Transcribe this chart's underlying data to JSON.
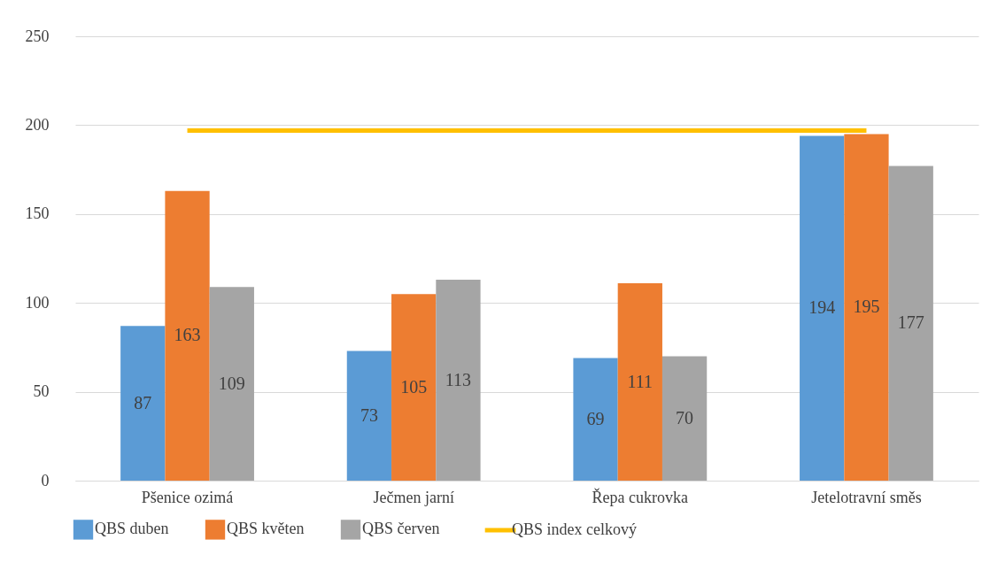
{
  "chart_data": {
    "type": "bar",
    "categories": [
      "Pšenice ozimá",
      "Ječmen jarní",
      "Řepa cukrovka",
      "Jetelotravní směs"
    ],
    "series": [
      {
        "name": "QBS duben",
        "color": "#5b9bd5",
        "values": [
          87,
          73,
          69,
          194
        ],
        "value_labels": [
          "87",
          "73",
          "69",
          "194"
        ]
      },
      {
        "name": "QBS květen",
        "color": "#ed7d31",
        "values": [
          163,
          105,
          111,
          195
        ],
        "value_labels": [
          "163",
          "105",
          "111",
          "195"
        ]
      },
      {
        "name": "QBS červen",
        "color": "#a5a5a5",
        "values": [
          109,
          113,
          70,
          177
        ],
        "value_labels": [
          "109",
          "113",
          "70",
          "177"
        ]
      },
      {
        "name": "QBS index celkový",
        "type": "line",
        "color": "#ffc000",
        "values": [
          197,
          197,
          197,
          197
        ]
      }
    ],
    "ylim": [
      0,
      250
    ],
    "yticks": [
      0,
      50,
      100,
      150,
      200,
      250
    ],
    "grid": "y",
    "legend": "bottom",
    "marker": "none",
    "line_style": "solid"
  }
}
